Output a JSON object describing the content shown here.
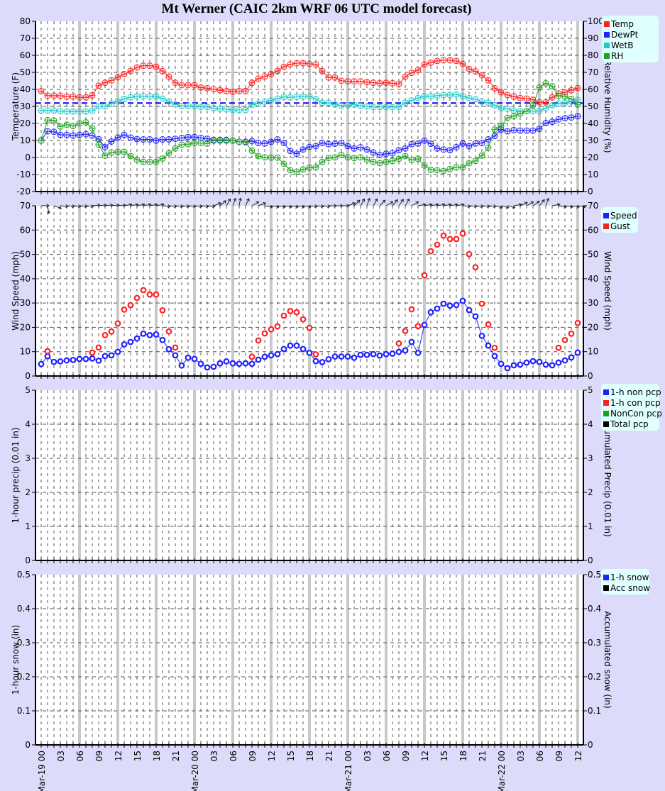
{
  "title": "Mt Werner (CAIC 2km WRF 06 UTC model forecast)",
  "x_axis": {
    "hours": "hourly, Mar-19 00 to Mar-22 12",
    "labels": [
      "Mar-19 00",
      "03",
      "06",
      "09",
      "12",
      "15",
      "18",
      "21",
      "Mar-20 00",
      "03",
      "06",
      "09",
      "12",
      "15",
      "18",
      "21",
      "Mar-21 00",
      "03",
      "06",
      "09",
      "12",
      "15",
      "18",
      "21",
      "Mar-22 00",
      "03",
      "06",
      "09",
      "12"
    ]
  },
  "colors": {
    "background": "#dcdcfa",
    "plot": "#ffffff",
    "legend_bg": "#e0ffff",
    "major_grid": "#c8c8c8",
    "temp": "#ff2020",
    "dewpt": "#2020ff",
    "wetb": "#20c8c8",
    "rh": "#20a020",
    "speed": "#2020ff",
    "gust": "#ff2020",
    "freezing_line": "#0000ff"
  },
  "chart_data": [
    {
      "type": "line",
      "ylabel": "Temperature (F)",
      "ylabel_right": "Relative Humidity (%)",
      "ylim": [
        -20,
        80
      ],
      "ylim_right": [
        0,
        100
      ],
      "yticks": [
        "-20",
        "-10",
        "0",
        "10",
        "20",
        "30",
        "40",
        "50",
        "60",
        "70",
        "80"
      ],
      "yticks_right": [
        "0",
        "10",
        "20",
        "30",
        "40",
        "50",
        "60",
        "70",
        "80",
        "90",
        "100"
      ],
      "grid": true,
      "legend_position": "right-top",
      "reference_line": {
        "value": 32,
        "style": "dashed"
      },
      "series": [
        {
          "name": "Temp",
          "axis": "left",
          "color": "#ff2020",
          "values": [
            39.0,
            36.3,
            36.3,
            36.3,
            35.8,
            35.8,
            35.3,
            35.3,
            36.5,
            42.2,
            43.9,
            45.3,
            47.1,
            49.0,
            50.8,
            52.9,
            53.9,
            53.9,
            53.3,
            50.8,
            47.4,
            43.9,
            42.5,
            42.5,
            42.5,
            41.1,
            40.7,
            40.1,
            39.5,
            39.0,
            38.6,
            39.0,
            39.0,
            43.9,
            46.3,
            47.6,
            49.0,
            50.8,
            53.3,
            54.7,
            55.4,
            55.4,
            55.0,
            54.7,
            50.8,
            47.0,
            47.0,
            45.0,
            44.7,
            44.7,
            44.7,
            44.3,
            43.9,
            43.6,
            43.9,
            43.6,
            43.2,
            47.4,
            49.7,
            51.3,
            54.6,
            55.7,
            56.7,
            57.1,
            57.1,
            56.7,
            55.0,
            52.0,
            50.6,
            48.3,
            45.3,
            40.7,
            38.3,
            36.7,
            35.8,
            34.9,
            34.6,
            33.9,
            32.4,
            32.4,
            35.3,
            37.6,
            38.3,
            39.5,
            40.8
          ]
        },
        {
          "name": "DewPt",
          "axis": "left",
          "color": "#2020ff",
          "values": [
            9.9,
            15.4,
            15.1,
            13.3,
            13.3,
            12.9,
            13.3,
            13.7,
            12.9,
            10.8,
            6.1,
            9.4,
            11.7,
            13.3,
            11.7,
            10.8,
            10.6,
            10.6,
            9.9,
            10.6,
            10.6,
            11.0,
            11.5,
            12.0,
            12.0,
            11.5,
            11.0,
            10.3,
            10.3,
            10.3,
            9.9,
            9.2,
            9.2,
            9.6,
            8.5,
            8.2,
            9.2,
            10.6,
            8.5,
            3.9,
            2.2,
            4.7,
            6.2,
            6.7,
            8.5,
            7.8,
            8.1,
            8.5,
            6.7,
            5.3,
            6.0,
            4.7,
            2.9,
            1.5,
            2.2,
            2.5,
            4.3,
            5.3,
            7.8,
            8.2,
            9.9,
            8.1,
            5.3,
            4.7,
            4.3,
            6.1,
            8.2,
            6.7,
            8.2,
            8.5,
            10.6,
            12.6,
            16.4,
            15.4,
            16.1,
            15.8,
            15.8,
            15.8,
            16.8,
            20.3,
            21.0,
            22.4,
            23.1,
            23.5,
            24.2
          ]
        },
        {
          "name": "WetB",
          "axis": "left",
          "color": "#20c8c8",
          "values": [
            27.6,
            27.6,
            27.6,
            27.2,
            27.0,
            27.0,
            27.0,
            27.0,
            27.5,
            30.0,
            30.0,
            31.7,
            33.0,
            34.4,
            35.3,
            36.0,
            36.0,
            36.0,
            36.0,
            34.6,
            33.0,
            31.1,
            30.3,
            30.3,
            30.3,
            29.7,
            29.7,
            29.0,
            28.6,
            28.3,
            27.9,
            27.9,
            27.9,
            31.0,
            31.7,
            32.8,
            33.5,
            34.6,
            35.6,
            35.3,
            35.6,
            35.8,
            36.0,
            34.4,
            32.1,
            32.1,
            31.1,
            30.4,
            30.7,
            31.0,
            30.4,
            30.0,
            29.6,
            29.6,
            29.6,
            29.6,
            29.6,
            32.1,
            33.5,
            34.9,
            36.0,
            36.0,
            36.3,
            36.7,
            36.7,
            37.0,
            36.0,
            34.9,
            34.2,
            32.8,
            32.1,
            30.7,
            28.9,
            28.6,
            27.5,
            27.2,
            27.2,
            27.2,
            27.2,
            28.9,
            30.7,
            31.7,
            32.1,
            32.8,
            33.9
          ]
        },
        {
          "name": "RH",
          "axis": "right",
          "color": "#20a020",
          "values": [
            29.9,
            42.0,
            41.7,
            38.2,
            39.2,
            38.5,
            40.0,
            40.6,
            37.1,
            27.5,
            21.1,
            22.9,
            23.3,
            23.3,
            20.8,
            18.7,
            17.4,
            17.4,
            17.4,
            19.4,
            22.5,
            25.3,
            27.5,
            27.8,
            28.5,
            28.5,
            28.2,
            29.9,
            29.9,
            29.9,
            29.9,
            29.2,
            28.9,
            24.0,
            20.8,
            20.1,
            19.9,
            19.9,
            16.3,
            12.5,
            11.6,
            13.0,
            14.0,
            14.2,
            17.4,
            19.7,
            20.1,
            21.5,
            20.1,
            19.7,
            20.1,
            18.7,
            17.4,
            16.7,
            17.4,
            18.0,
            19.2,
            20.8,
            18.5,
            19.2,
            15.3,
            12.8,
            12.5,
            12.1,
            13.2,
            14.2,
            14.2,
            16.7,
            18.0,
            21.1,
            25.7,
            36.4,
            38.6,
            43.3,
            44.2,
            45.8,
            47.2,
            50.7,
            61.1,
            63.6,
            61.8,
            56.3,
            55.8,
            54.4,
            51.1
          ]
        }
      ]
    },
    {
      "type": "line",
      "ylabel": "Wind Speed (mph)",
      "ylabel_right": "Wind Speed (mph)",
      "ylim": [
        0,
        70
      ],
      "ylim_right": [
        0,
        70
      ],
      "yticks": [
        "0",
        "10",
        "20",
        "30",
        "40",
        "50",
        "60",
        "70"
      ],
      "yticks_right": [
        "0",
        "10",
        "20",
        "30",
        "40",
        "50",
        "60",
        "70"
      ],
      "grid": true,
      "legend_position": "right-top",
      "wind_arrow_direction_deg": [
        0,
        -80,
        -20,
        -5,
        -5,
        -5,
        -5,
        -5,
        5,
        5,
        5,
        5,
        5,
        10,
        10,
        10,
        10,
        10,
        10,
        -5,
        -5,
        -5,
        -5,
        -5,
        -5,
        -5,
        -5,
        20,
        40,
        60,
        70,
        80,
        65,
        30,
        20,
        -10,
        -10,
        -10,
        -10,
        -10,
        -10,
        -10,
        -5,
        -5,
        -5,
        0,
        0,
        0,
        20,
        45,
        60,
        70,
        60,
        45,
        30,
        50,
        55,
        60,
        30,
        10,
        10,
        10,
        10,
        10,
        10,
        10,
        -5,
        -5,
        -5,
        -5,
        -5,
        -15,
        -15,
        -15,
        10,
        25,
        30,
        35,
        50,
        70,
        10,
        -10,
        -10,
        -10,
        -10
      ],
      "series": [
        {
          "name": "Speed",
          "color": "#2020ff",
          "connected": true,
          "values": [
            4.9,
            8.1,
            5.8,
            6.0,
            6.4,
            6.6,
            7.0,
            7.0,
            7.2,
            6.3,
            8.2,
            8.5,
            9.9,
            13.0,
            14.0,
            15.4,
            17.4,
            16.8,
            17.1,
            14.8,
            11.0,
            8.5,
            4.3,
            7.5,
            7.0,
            5.0,
            3.5,
            3.8,
            5.2,
            6.0,
            5.2,
            5.0,
            5.2,
            5.0,
            6.7,
            7.9,
            8.5,
            9.0,
            11.1,
            12.5,
            12.5,
            11.1,
            9.5,
            6.1,
            5.7,
            6.9,
            8.0,
            8.0,
            8.0,
            7.5,
            8.7,
            8.7,
            9.0,
            8.4,
            9.0,
            9.2,
            9.9,
            10.5,
            14.0,
            9.5,
            21.0,
            26.2,
            27.7,
            29.7,
            28.9,
            29.2,
            30.9,
            27.1,
            24.5,
            16.5,
            12.5,
            8.2,
            5.0,
            3.2,
            4.4,
            4.7,
            5.5,
            6.1,
            5.8,
            4.7,
            4.4,
            5.5,
            6.4,
            7.6,
            9.6
          ]
        },
        {
          "name": "Gust",
          "color": "#ff2020",
          "connected": false,
          "values": [
            null,
            10.2,
            null,
            null,
            null,
            null,
            null,
            null,
            9.6,
            11.7,
            16.8,
            18.3,
            21.6,
            27.3,
            29.1,
            32.1,
            35.3,
            33.5,
            33.5,
            27.0,
            18.3,
            11.7,
            null,
            null,
            null,
            null,
            null,
            null,
            null,
            null,
            null,
            null,
            null,
            7.9,
            14.6,
            17.5,
            19.2,
            20.4,
            24.8,
            26.7,
            26.2,
            23.3,
            19.8,
            8.9,
            null,
            null,
            null,
            null,
            null,
            null,
            null,
            null,
            null,
            null,
            null,
            null,
            13.4,
            18.5,
            27.4,
            20.5,
            41.4,
            51.3,
            54.0,
            57.7,
            56.3,
            56.3,
            58.6,
            50.1,
            44.7,
            29.7,
            21.2,
            11.6,
            null,
            null,
            null,
            null,
            null,
            null,
            null,
            null,
            null,
            11.6,
            14.8,
            17.4,
            21.8
          ]
        }
      ]
    },
    {
      "type": "line",
      "ylabel": "1-hour precip (0.01 in)",
      "ylabel_right": "Accumulated Precip (0.01 in)",
      "ylim": [
        0,
        5
      ],
      "ylim_right": [
        0,
        5
      ],
      "yticks": [
        "0",
        "1",
        "2",
        "3",
        "4",
        "5"
      ],
      "yticks_right": [
        "0",
        "1",
        "2",
        "3",
        "4",
        "5"
      ],
      "grid": true,
      "legend_position": "right-top",
      "series": [
        {
          "name": "1-h non pcp",
          "color": "#2020ff",
          "values": []
        },
        {
          "name": "1-h con pcp",
          "color": "#ff2020",
          "values": []
        },
        {
          "name": "NonCon pcp",
          "color": "#20a020",
          "values": []
        },
        {
          "name": "Total pcp",
          "color": "#000000",
          "values": []
        }
      ]
    },
    {
      "type": "line",
      "ylabel": "1-hour snow (in)",
      "ylabel_right": "Accumulated snow (in)",
      "ylim": [
        0,
        0.5
      ],
      "ylim_right": [
        0,
        0.5
      ],
      "yticks": [
        "0",
        "0.1",
        "0.2",
        "0.3",
        "0.4",
        "0.5"
      ],
      "yticks_right": [
        "0",
        "0.1",
        "0.2",
        "0.3",
        "0.4",
        "0.5"
      ],
      "grid": true,
      "legend_position": "right-top",
      "series": [
        {
          "name": "1-h snow",
          "color": "#2020ff",
          "values": []
        },
        {
          "name": "Acc snow",
          "color": "#000000",
          "values": []
        }
      ]
    }
  ]
}
